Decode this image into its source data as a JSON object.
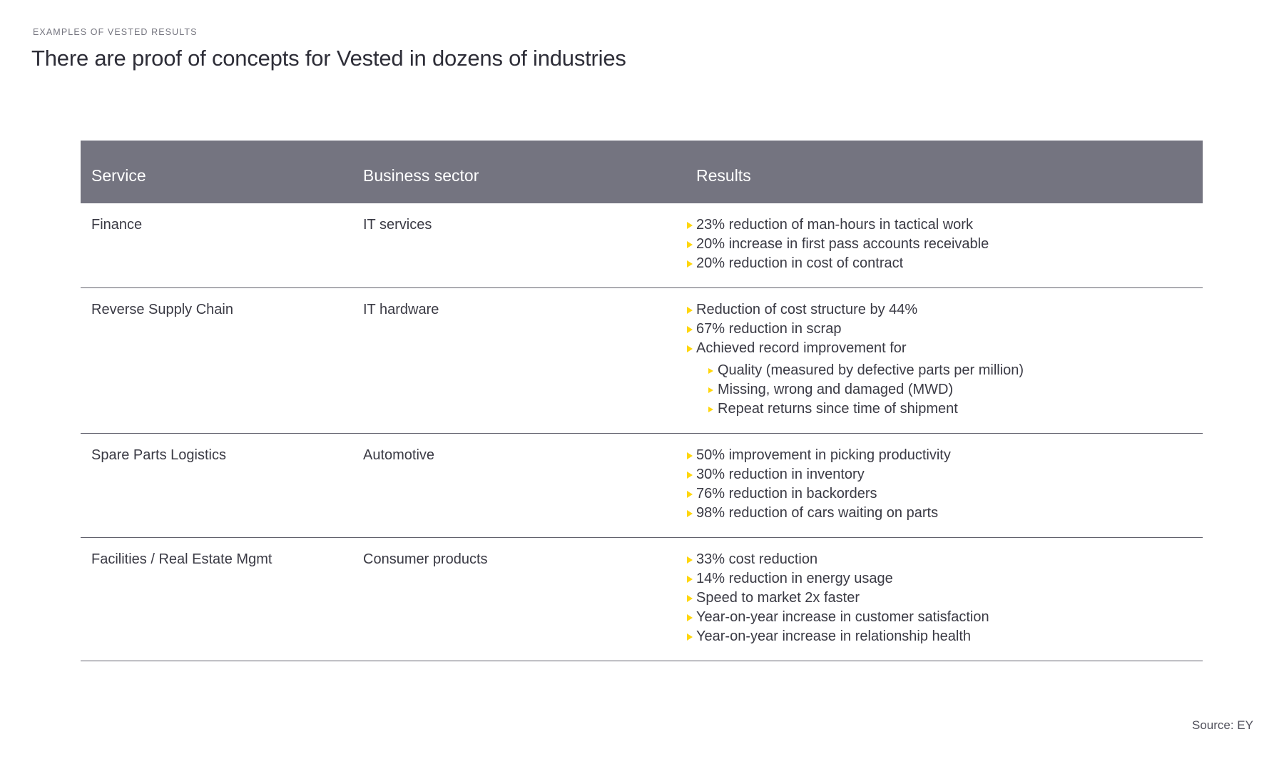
{
  "page": {
    "eyebrow": "EXAMPLES OF VESTED RESULTS",
    "title": "There are proof of concepts for Vested in dozens of industries",
    "source": "Source: EY"
  },
  "colors": {
    "header_bg": "#747480",
    "header_text": "#ffffff",
    "body_text": "#3a3a44",
    "bullet_yellow": "#ffd60b",
    "separator": "#62626d",
    "eyebrow_text": "#75757f",
    "title_text": "#2e2e38",
    "source_text": "#51515c"
  },
  "table": {
    "headers": [
      "Service",
      "Business sector",
      "Results"
    ],
    "rows": [
      {
        "service": "Finance",
        "sector": "IT services",
        "results": [
          {
            "text": "23% reduction of man-hours in tactical work",
            "indent": 0
          },
          {
            "text": "20% increase in first pass accounts receivable",
            "indent": 0
          },
          {
            "text": "20% reduction in cost of contract",
            "indent": 0
          }
        ]
      },
      {
        "service": "Reverse Supply Chain",
        "sector": "IT hardware",
        "results": [
          {
            "text": "Reduction of cost structure by 44%",
            "indent": 0
          },
          {
            "text": "67% reduction in scrap",
            "indent": 0
          },
          {
            "text": "Achieved record improvement for",
            "indent": 0
          },
          {
            "text": "Quality (measured by defective parts per million)",
            "indent": 1
          },
          {
            "text": "Missing, wrong and damaged (MWD)",
            "indent": 1
          },
          {
            "text": "Repeat returns since time of shipment",
            "indent": 1
          }
        ]
      },
      {
        "service": "Spare Parts Logistics",
        "sector": "Automotive",
        "results": [
          {
            "text": "50% improvement in picking productivity",
            "indent": 0
          },
          {
            "text": "30% reduction in inventory",
            "indent": 0
          },
          {
            "text": "76% reduction in backorders",
            "indent": 0
          },
          {
            "text": "98% reduction of cars waiting on parts",
            "indent": 0
          }
        ]
      },
      {
        "service": "Facilities / Real Estate Mgmt",
        "sector": "Consumer products",
        "results": [
          {
            "text": "33% cost reduction",
            "indent": 0
          },
          {
            "text": "14% reduction in energy usage",
            "indent": 0
          },
          {
            "text": "Speed to market 2x faster",
            "indent": 0
          },
          {
            "text": "Year-on-year increase in customer satisfaction",
            "indent": 0
          },
          {
            "text": "Year-on-year increase in relationship health",
            "indent": 0
          }
        ]
      }
    ]
  }
}
